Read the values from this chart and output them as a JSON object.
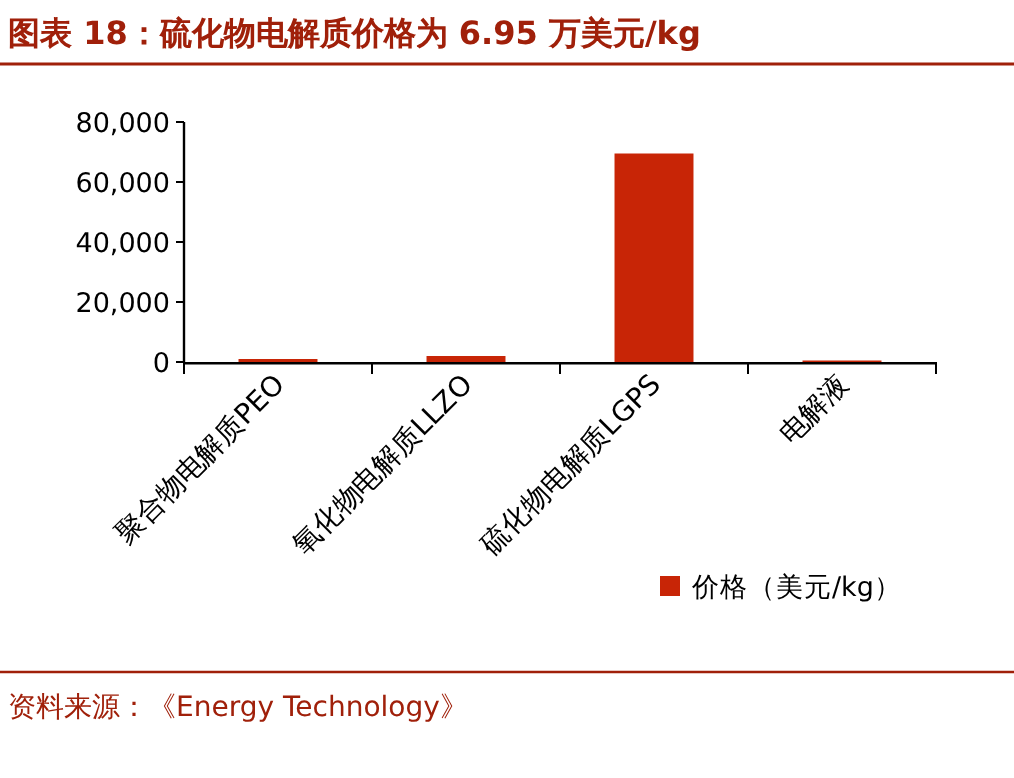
{
  "chart_data": {
    "type": "bar",
    "title": "图表 18：硫化物电解质价格为 6.95 万美元/kg",
    "categories": [
      "聚合物电解质PEO",
      "氧化物电解质LLZO",
      "硫化物电解质LGPS",
      "电解液"
    ],
    "series": [
      {
        "name": "价格（美元/kg）",
        "color": "#c82506",
        "values": [
          1000,
          2000,
          69500,
          500
        ]
      }
    ],
    "ylim": [
      0,
      80000
    ],
    "yticks": [
      {
        "value": 0,
        "label": "0"
      },
      {
        "value": 20000,
        "label": "20,000"
      },
      {
        "value": 40000,
        "label": "40,000"
      },
      {
        "value": 60000,
        "label": "60,000"
      },
      {
        "value": 80000,
        "label": "80,000"
      }
    ],
    "legend": "bottom right",
    "grid": false,
    "annotations": [
      "资料来源：《Energy Technology》"
    ]
  }
}
